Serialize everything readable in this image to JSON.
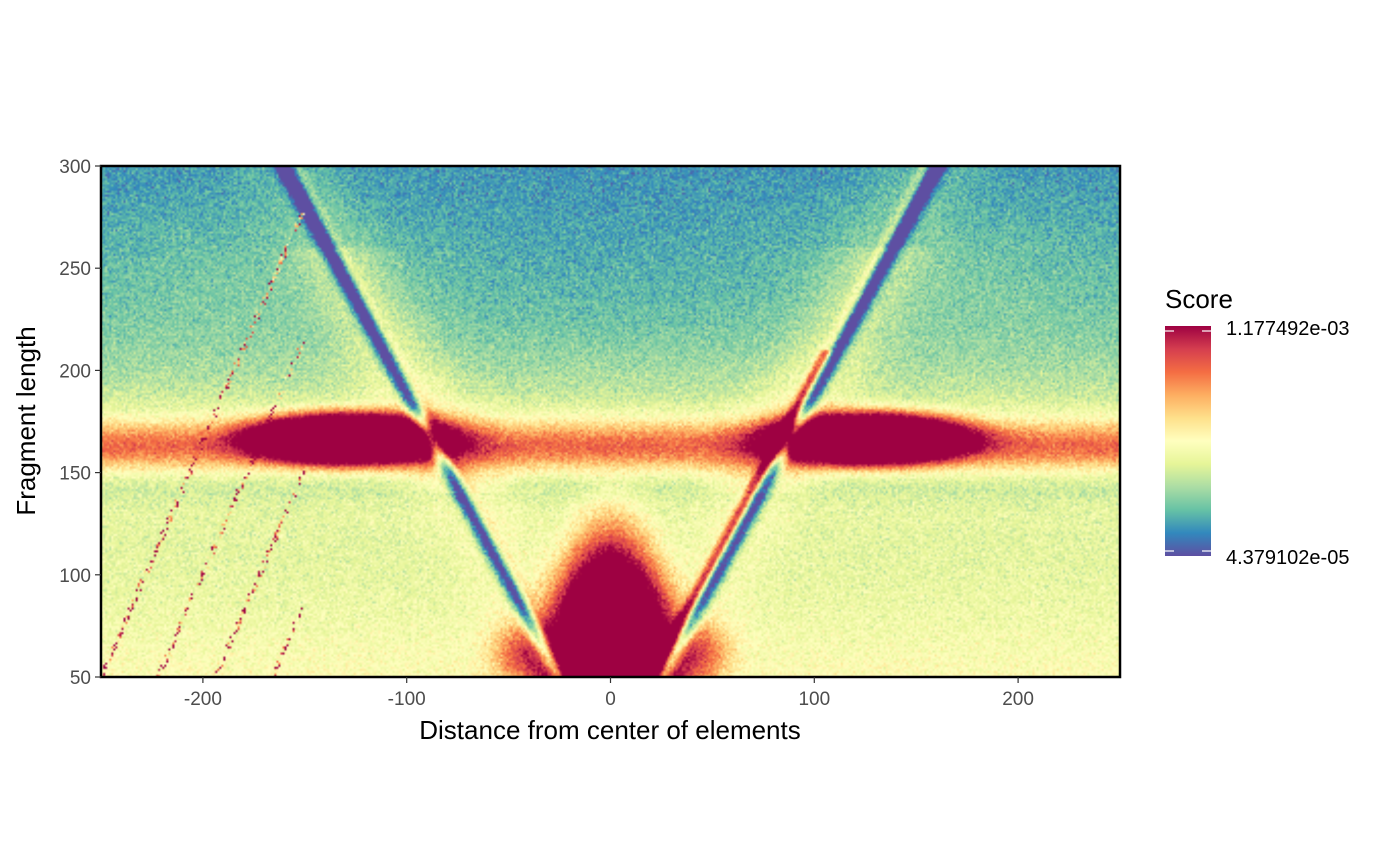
{
  "chart_data": {
    "type": "heatmap",
    "xlabel": "Distance from center of elements",
    "ylabel": "Fragment length",
    "xlim": [
      -250,
      250
    ],
    "ylim": [
      50,
      300
    ],
    "x_ticks": [
      -200,
      -100,
      0,
      100,
      200
    ],
    "y_ticks": [
      50,
      100,
      150,
      200,
      250,
      300
    ],
    "x_tick_labels": [
      "-200",
      "-100",
      "0",
      "100",
      "200"
    ],
    "y_tick_labels": [
      "50",
      "100",
      "150",
      "200",
      "250",
      "300"
    ],
    "grid": false,
    "legend": {
      "title": "Score",
      "placement": "right",
      "max_label": "1.177492e-03",
      "min_label": "4.379102e-05",
      "max": 0.001177492,
      "min": 4.379102e-05
    },
    "colormap": [
      "#5E4FA2",
      "#3288BD",
      "#66C2A5",
      "#ABDDA4",
      "#E6F598",
      "#FFFFBF",
      "#FEE08B",
      "#FDAE61",
      "#F46D43",
      "#D53E4F",
      "#9E0142"
    ],
    "features": {
      "nucleosome_band_fragment_length": 163,
      "dinucleosome_lobes_center_x": [
        -130,
        128
      ],
      "subnucleosomal_blob_center_x": 0,
      "v_lines_apex_x": 0,
      "v_lines_apex_fragment_length": 50,
      "v_lines_slope": 1.85
    }
  }
}
